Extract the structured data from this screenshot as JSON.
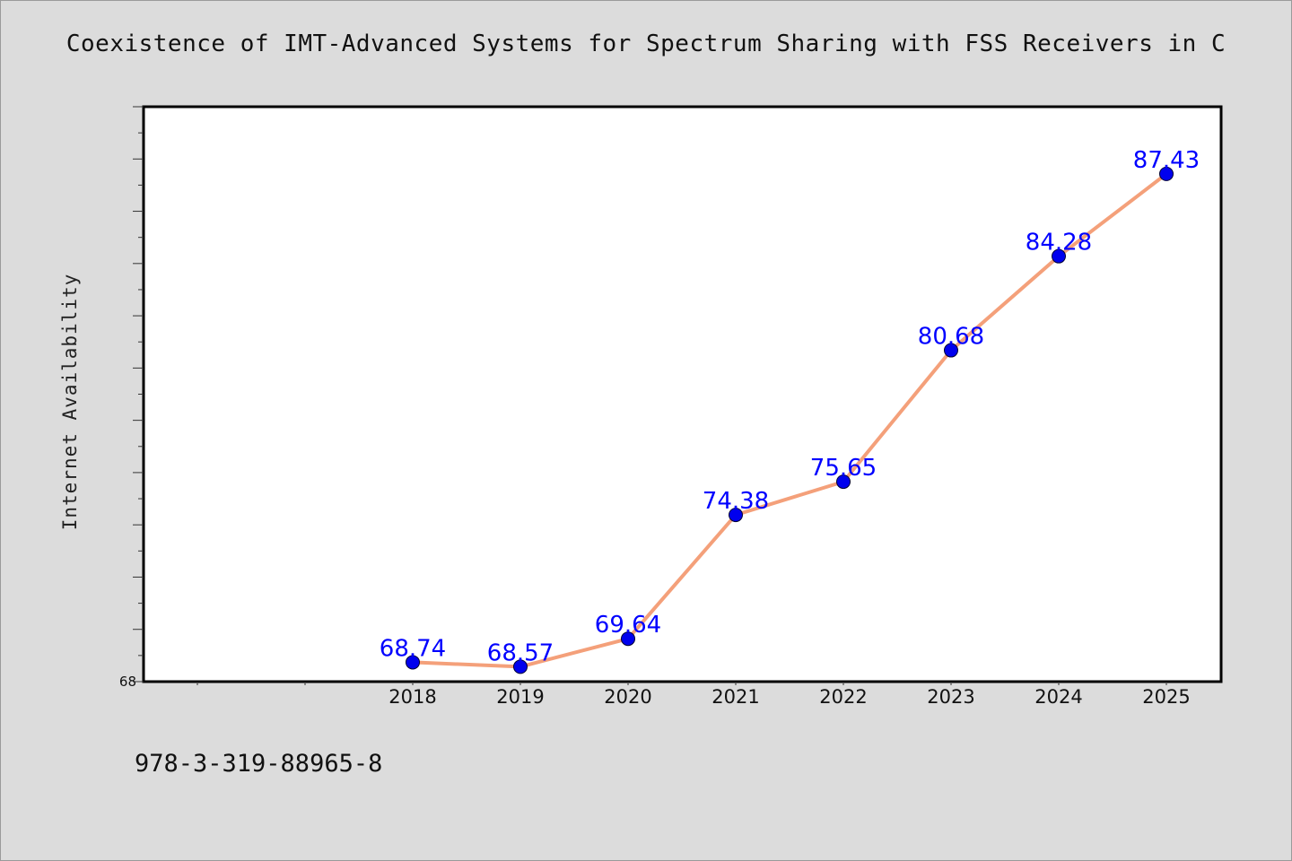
{
  "chart_data": {
    "type": "line",
    "title": "Coexistence of IMT-Advanced Systems for Spectrum Sharing with FSS Receivers in C",
    "xlabel": "",
    "ylabel": "Internet Availability",
    "categories": [
      "2018",
      "2019",
      "2020",
      "2021",
      "2022",
      "2023",
      "2024",
      "2025"
    ],
    "series": [
      {
        "values": [
          68.74,
          68.57,
          69.64,
          74.38,
          75.65,
          80.68,
          84.28,
          87.43
        ],
        "data_labels": [
          "68.74",
          "68.57",
          "69.64",
          "74.38",
          "75.65",
          "80.68",
          "84.28",
          "87.43"
        ]
      }
    ],
    "ylim": [
      68,
      90
    ],
    "y_tick_labels": [
      "68"
    ],
    "line_color": "#f4a07a",
    "marker_color": "#0000ee",
    "label_color": "#0000ff",
    "grid": false,
    "legend": "none"
  },
  "footnote": "978-3-319-88965-8"
}
